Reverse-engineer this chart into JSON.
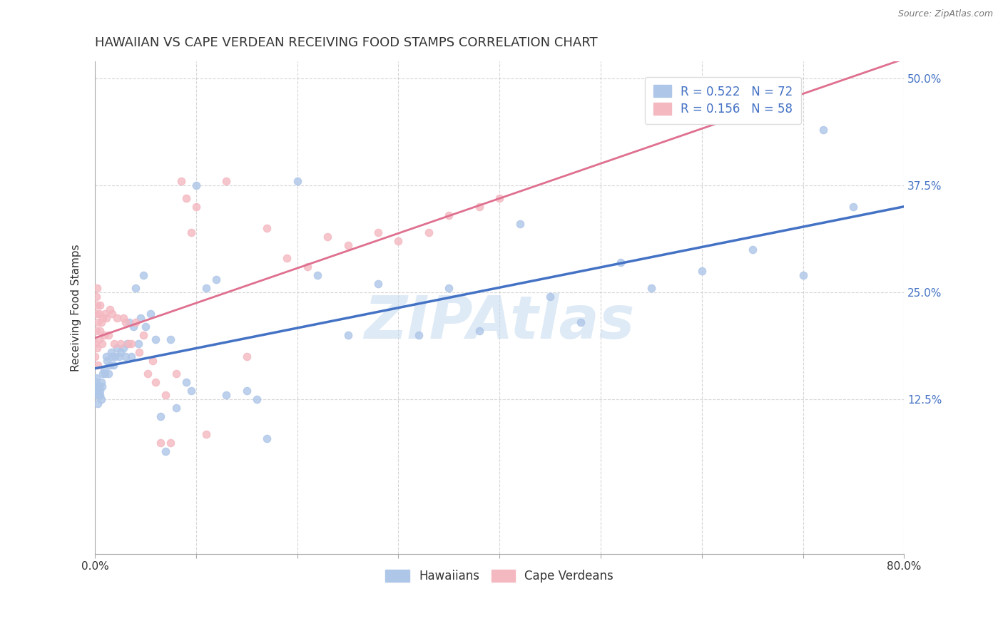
{
  "title": "HAWAIIAN VS CAPE VERDEAN RECEIVING FOOD STAMPS CORRELATION CHART",
  "source": "Source: ZipAtlas.com",
  "ylabel": "Receiving Food Stamps",
  "x_min": 0.0,
  "x_max": 0.8,
  "y_min": -0.055,
  "y_max": 0.52,
  "hawaiian_R": 0.522,
  "hawaiian_N": 72,
  "capeverdean_R": 0.156,
  "capeverdean_N": 58,
  "hawaiian_color": "#aec6e8",
  "capeverdean_color": "#f4b8c1",
  "hawaiian_line_color": "#4472c4",
  "capeverdean_line_color": "#e07090",
  "watermark": "ZIPAtlas",
  "legend_labels": [
    "Hawaiians",
    "Cape Verdeans"
  ],
  "background_color": "#ffffff",
  "grid_color": "#cccccc",
  "title_fontsize": 13,
  "axis_label_fontsize": 11,
  "tick_fontsize": 11,
  "legend_fontsize": 12,
  "hawaiian_x": [
    0.001,
    0.001,
    0.001,
    0.002,
    0.002,
    0.003,
    0.003,
    0.003,
    0.004,
    0.004,
    0.005,
    0.005,
    0.006,
    0.006,
    0.007,
    0.008,
    0.009,
    0.01,
    0.011,
    0.012,
    0.013,
    0.015,
    0.016,
    0.017,
    0.018,
    0.02,
    0.022,
    0.024,
    0.025,
    0.028,
    0.03,
    0.032,
    0.034,
    0.036,
    0.038,
    0.04,
    0.043,
    0.045,
    0.048,
    0.05,
    0.055,
    0.06,
    0.065,
    0.07,
    0.075,
    0.08,
    0.09,
    0.095,
    0.1,
    0.11,
    0.12,
    0.13,
    0.15,
    0.16,
    0.17,
    0.2,
    0.22,
    0.25,
    0.28,
    0.32,
    0.35,
    0.38,
    0.42,
    0.45,
    0.48,
    0.52,
    0.55,
    0.6,
    0.65,
    0.7,
    0.72,
    0.75
  ],
  "hawaiian_y": [
    0.14,
    0.15,
    0.145,
    0.13,
    0.14,
    0.12,
    0.135,
    0.14,
    0.13,
    0.14,
    0.13,
    0.135,
    0.125,
    0.145,
    0.14,
    0.155,
    0.16,
    0.155,
    0.175,
    0.17,
    0.155,
    0.165,
    0.18,
    0.175,
    0.165,
    0.175,
    0.185,
    0.175,
    0.18,
    0.185,
    0.175,
    0.19,
    0.215,
    0.175,
    0.21,
    0.255,
    0.19,
    0.22,
    0.27,
    0.21,
    0.225,
    0.195,
    0.105,
    0.065,
    0.195,
    0.115,
    0.145,
    0.135,
    0.375,
    0.255,
    0.265,
    0.13,
    0.135,
    0.125,
    0.08,
    0.38,
    0.27,
    0.2,
    0.26,
    0.2,
    0.255,
    0.205,
    0.33,
    0.245,
    0.215,
    0.285,
    0.255,
    0.275,
    0.3,
    0.27,
    0.44,
    0.35
  ],
  "capeverdean_x": [
    0.0,
    0.0,
    0.001,
    0.001,
    0.001,
    0.002,
    0.002,
    0.002,
    0.003,
    0.003,
    0.004,
    0.004,
    0.005,
    0.005,
    0.006,
    0.007,
    0.008,
    0.009,
    0.01,
    0.011,
    0.013,
    0.015,
    0.017,
    0.019,
    0.022,
    0.025,
    0.028,
    0.03,
    0.033,
    0.036,
    0.04,
    0.044,
    0.048,
    0.052,
    0.057,
    0.06,
    0.065,
    0.07,
    0.075,
    0.08,
    0.085,
    0.09,
    0.095,
    0.1,
    0.11,
    0.13,
    0.15,
    0.17,
    0.19,
    0.21,
    0.23,
    0.25,
    0.28,
    0.3,
    0.33,
    0.35,
    0.38,
    0.4
  ],
  "capeverdean_y": [
    0.175,
    0.19,
    0.205,
    0.225,
    0.245,
    0.185,
    0.235,
    0.255,
    0.165,
    0.215,
    0.195,
    0.225,
    0.205,
    0.235,
    0.215,
    0.19,
    0.22,
    0.2,
    0.225,
    0.22,
    0.2,
    0.23,
    0.225,
    0.19,
    0.22,
    0.19,
    0.22,
    0.215,
    0.19,
    0.19,
    0.215,
    0.18,
    0.2,
    0.155,
    0.17,
    0.145,
    0.075,
    0.13,
    0.075,
    0.155,
    0.38,
    0.36,
    0.32,
    0.35,
    0.085,
    0.38,
    0.175,
    0.325,
    0.29,
    0.28,
    0.315,
    0.305,
    0.32,
    0.31,
    0.32,
    0.34,
    0.35,
    0.36
  ]
}
